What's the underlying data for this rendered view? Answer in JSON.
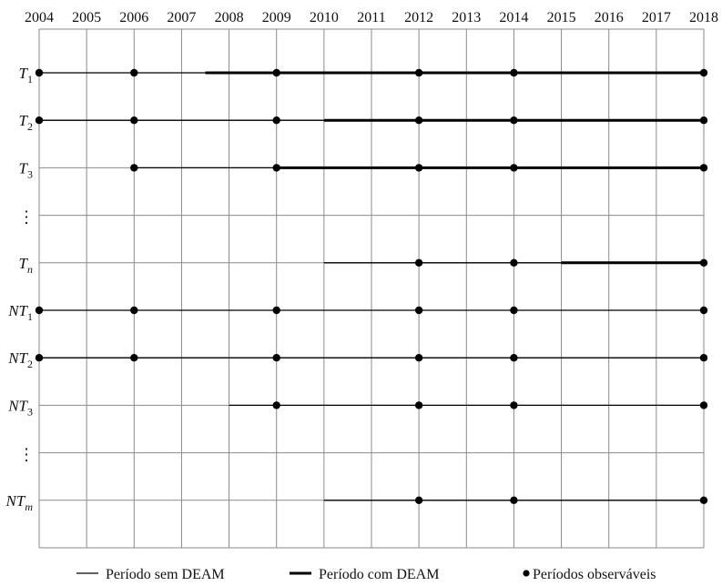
{
  "years": [
    "2004",
    "2005",
    "2006",
    "2007",
    "2008",
    "2009",
    "2010",
    "2011",
    "2012",
    "2013",
    "2014",
    "2015",
    "2016",
    "2017",
    "2018"
  ],
  "rows": [
    {
      "id": "T1",
      "label": "T",
      "sub": "1",
      "ellipsis": false,
      "thin": [
        "2004",
        "2007.5"
      ],
      "thick": [
        "2007.5",
        "2018"
      ],
      "dots": [
        "2004",
        "2006",
        "2009",
        "2012",
        "2014",
        "2018"
      ]
    },
    {
      "id": "T2",
      "label": "T",
      "sub": "2",
      "ellipsis": false,
      "thin": [
        "2004",
        "2010"
      ],
      "thick": [
        "2010",
        "2018"
      ],
      "dots": [
        "2004",
        "2006",
        "2009",
        "2012",
        "2014",
        "2018"
      ]
    },
    {
      "id": "T3",
      "label": "T",
      "sub": "3",
      "ellipsis": false,
      "thin": [
        "2006",
        "2009"
      ],
      "thick": [
        "2009",
        "2018"
      ],
      "dots": [
        "2006",
        "2009",
        "2012",
        "2014",
        "2018"
      ]
    },
    {
      "id": "dots-a",
      "label": "⋮",
      "sub": "",
      "ellipsis": true,
      "thin": null,
      "thick": null,
      "dots": []
    },
    {
      "id": "Tn",
      "label": "T",
      "sub": "n",
      "ellipsis": false,
      "thin": [
        "2010",
        "2015"
      ],
      "thick": [
        "2015",
        "2018"
      ],
      "dots": [
        "2012",
        "2014",
        "2018"
      ]
    },
    {
      "id": "NT1",
      "label": "NT",
      "sub": "1",
      "ellipsis": false,
      "thin": [
        "2004",
        "2018"
      ],
      "thick": null,
      "dots": [
        "2004",
        "2006",
        "2009",
        "2012",
        "2014",
        "2018"
      ]
    },
    {
      "id": "NT2",
      "label": "NT",
      "sub": "2",
      "ellipsis": false,
      "thin": [
        "2004",
        "2018"
      ],
      "thick": null,
      "dots": [
        "2004",
        "2006",
        "2009",
        "2012",
        "2014",
        "2018"
      ]
    },
    {
      "id": "NT3",
      "label": "NT",
      "sub": "3",
      "ellipsis": false,
      "thin": [
        "2008",
        "2018"
      ],
      "thick": null,
      "dots": [
        "2009",
        "2012",
        "2014",
        "2018"
      ]
    },
    {
      "id": "dots-b",
      "label": "⋮",
      "sub": "",
      "ellipsis": true,
      "thin": null,
      "thick": null,
      "dots": []
    },
    {
      "id": "NTm",
      "label": "NT",
      "sub": "m",
      "ellipsis": false,
      "thin": [
        "2010",
        "2018"
      ],
      "thick": null,
      "dots": [
        "2012",
        "2014",
        "2018"
      ]
    }
  ],
  "legend": {
    "thin_label": "Período sem DEAM",
    "thick_label": "Período com DEAM",
    "dot_label": "Períodos observáveis"
  },
  "colors": {
    "grid": "#8a8a8a",
    "line": "#000000",
    "text": "#111111"
  }
}
